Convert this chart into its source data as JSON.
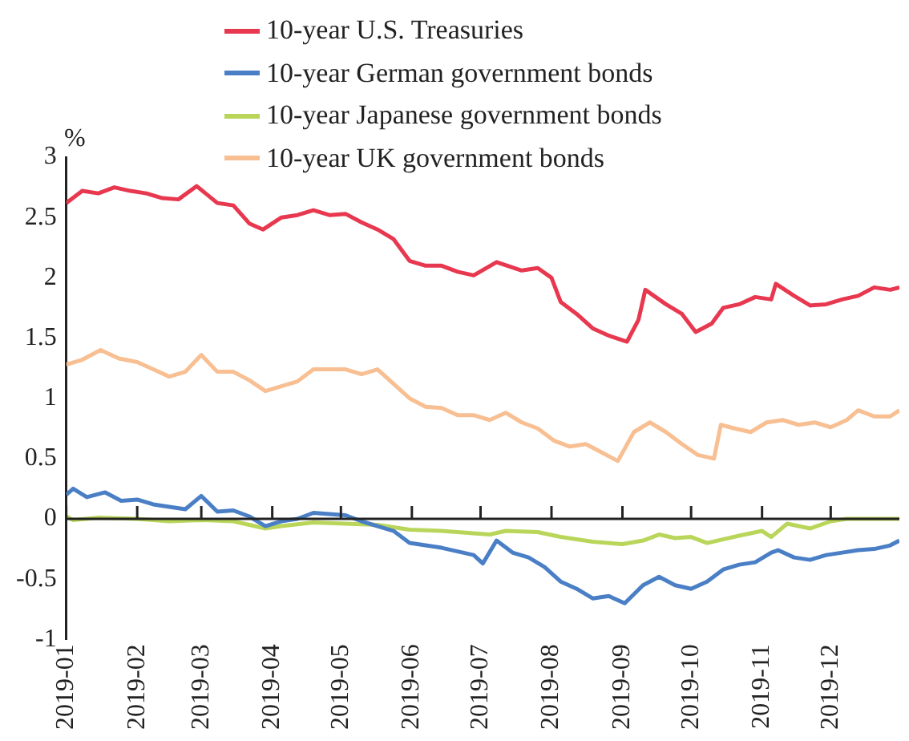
{
  "chart_data": {
    "type": "line",
    "ylabel": "%",
    "legend": "top",
    "grid": false,
    "line_style": "solid",
    "marker": "none",
    "xlim": [
      "2019-01-01",
      "2019-12-31"
    ],
    "xticks": [
      "2019-01",
      "2019-02",
      "2019-03",
      "2019-04",
      "2019-05",
      "2019-06",
      "2019-07",
      "2019-08",
      "2019-09",
      "2019-10",
      "2019-11",
      "2019-12"
    ],
    "ylim": [
      -1,
      3
    ],
    "yticks": [
      -1,
      -0.5,
      0,
      0.5,
      1,
      1.5,
      2,
      2.5,
      3
    ],
    "ref_lines": [
      {
        "axis": "y",
        "value": 0,
        "color": "#222222"
      }
    ],
    "series": [
      {
        "name": "10-year U.S. Treasuries",
        "color": "#e8384f",
        "x": [
          "2019-01-01",
          "2019-01-08",
          "2019-01-15",
          "2019-01-22",
          "2019-01-29",
          "2019-02-05",
          "2019-02-12",
          "2019-02-19",
          "2019-02-27",
          "2019-03-08",
          "2019-03-15",
          "2019-03-22",
          "2019-03-28",
          "2019-04-05",
          "2019-04-12",
          "2019-04-19",
          "2019-04-26",
          "2019-05-03",
          "2019-05-10",
          "2019-05-17",
          "2019-05-24",
          "2019-05-31",
          "2019-06-07",
          "2019-06-14",
          "2019-06-21",
          "2019-06-28",
          "2019-07-08",
          "2019-07-19",
          "2019-07-26",
          "2019-08-01",
          "2019-08-05",
          "2019-08-12",
          "2019-08-19",
          "2019-08-26",
          "2019-09-03",
          "2019-09-08",
          "2019-09-11",
          "2019-09-20",
          "2019-09-27",
          "2019-10-03",
          "2019-10-10",
          "2019-10-15",
          "2019-10-22",
          "2019-10-29",
          "2019-11-05",
          "2019-11-07",
          "2019-11-15",
          "2019-11-22",
          "2019-11-29",
          "2019-12-06",
          "2019-12-13",
          "2019-12-20",
          "2019-12-27",
          "2019-12-31"
        ],
        "values": [
          2.62,
          2.72,
          2.7,
          2.75,
          2.72,
          2.7,
          2.66,
          2.65,
          2.76,
          2.62,
          2.6,
          2.45,
          2.4,
          2.5,
          2.52,
          2.56,
          2.52,
          2.53,
          2.46,
          2.4,
          2.32,
          2.14,
          2.1,
          2.1,
          2.05,
          2.02,
          2.13,
          2.06,
          2.08,
          2.0,
          1.8,
          1.7,
          1.58,
          1.52,
          1.47,
          1.65,
          1.9,
          1.78,
          1.7,
          1.55,
          1.62,
          1.75,
          1.78,
          1.84,
          1.82,
          1.95,
          1.85,
          1.77,
          1.78,
          1.82,
          1.85,
          1.92,
          1.9,
          1.92
        ]
      },
      {
        "name": "10-year German government bonds",
        "color": "#4a7fc6",
        "x": [
          "2019-01-01",
          "2019-01-04",
          "2019-01-10",
          "2019-01-18",
          "2019-01-25",
          "2019-02-01",
          "2019-02-08",
          "2019-02-15",
          "2019-02-22",
          "2019-03-01",
          "2019-03-08",
          "2019-03-15",
          "2019-03-22",
          "2019-03-29",
          "2019-04-05",
          "2019-04-12",
          "2019-04-19",
          "2019-04-26",
          "2019-05-03",
          "2019-05-10",
          "2019-05-17",
          "2019-05-24",
          "2019-05-31",
          "2019-06-07",
          "2019-06-14",
          "2019-06-21",
          "2019-06-28",
          "2019-07-02",
          "2019-07-08",
          "2019-07-15",
          "2019-07-22",
          "2019-07-29",
          "2019-08-05",
          "2019-08-12",
          "2019-08-19",
          "2019-08-26",
          "2019-09-02",
          "2019-09-10",
          "2019-09-17",
          "2019-09-24",
          "2019-10-01",
          "2019-10-08",
          "2019-10-15",
          "2019-10-22",
          "2019-10-29",
          "2019-11-05",
          "2019-11-08",
          "2019-11-15",
          "2019-11-22",
          "2019-11-29",
          "2019-12-06",
          "2019-12-13",
          "2019-12-20",
          "2019-12-27",
          "2019-12-31"
        ],
        "values": [
          0.2,
          0.25,
          0.18,
          0.22,
          0.15,
          0.16,
          0.12,
          0.1,
          0.08,
          0.19,
          0.06,
          0.07,
          0.02,
          -0.06,
          -0.02,
          0.0,
          0.05,
          0.04,
          0.03,
          -0.02,
          -0.06,
          -0.1,
          -0.2,
          -0.22,
          -0.24,
          -0.27,
          -0.3,
          -0.37,
          -0.18,
          -0.28,
          -0.32,
          -0.4,
          -0.52,
          -0.58,
          -0.66,
          -0.64,
          -0.7,
          -0.55,
          -0.48,
          -0.55,
          -0.58,
          -0.52,
          -0.42,
          -0.38,
          -0.36,
          -0.28,
          -0.26,
          -0.32,
          -0.34,
          -0.3,
          -0.28,
          -0.26,
          -0.25,
          -0.22,
          -0.18
        ]
      },
      {
        "name": "10-year Japanese government bonds",
        "color": "#b9d65a",
        "x": [
          "2019-01-01",
          "2019-01-04",
          "2019-01-15",
          "2019-02-01",
          "2019-02-15",
          "2019-03-01",
          "2019-03-15",
          "2019-03-29",
          "2019-04-05",
          "2019-04-19",
          "2019-05-03",
          "2019-05-17",
          "2019-05-31",
          "2019-06-14",
          "2019-06-28",
          "2019-07-05",
          "2019-07-12",
          "2019-07-26",
          "2019-08-05",
          "2019-08-19",
          "2019-09-01",
          "2019-09-10",
          "2019-09-17",
          "2019-09-24",
          "2019-10-01",
          "2019-10-08",
          "2019-10-22",
          "2019-11-01",
          "2019-11-05",
          "2019-11-12",
          "2019-11-22",
          "2019-12-01",
          "2019-12-08",
          "2019-12-31"
        ],
        "values": [
          0.02,
          -0.01,
          0.01,
          0.0,
          -0.02,
          -0.01,
          -0.02,
          -0.08,
          -0.06,
          -0.03,
          -0.04,
          -0.05,
          -0.09,
          -0.1,
          -0.12,
          -0.13,
          -0.1,
          -0.11,
          -0.15,
          -0.19,
          -0.21,
          -0.18,
          -0.13,
          -0.16,
          -0.15,
          -0.2,
          -0.14,
          -0.1,
          -0.15,
          -0.04,
          -0.08,
          -0.02,
          0.0,
          0.0
        ]
      },
      {
        "name": "10-year UK government bonds",
        "color": "#f8bf92",
        "x": [
          "2019-01-01",
          "2019-01-08",
          "2019-01-16",
          "2019-01-24",
          "2019-02-01",
          "2019-02-08",
          "2019-02-15",
          "2019-02-22",
          "2019-03-01",
          "2019-03-08",
          "2019-03-15",
          "2019-03-22",
          "2019-03-29",
          "2019-04-05",
          "2019-04-12",
          "2019-04-19",
          "2019-04-26",
          "2019-05-03",
          "2019-05-10",
          "2019-05-17",
          "2019-05-24",
          "2019-05-31",
          "2019-06-07",
          "2019-06-14",
          "2019-06-21",
          "2019-06-28",
          "2019-07-05",
          "2019-07-12",
          "2019-07-19",
          "2019-07-26",
          "2019-08-02",
          "2019-08-09",
          "2019-08-16",
          "2019-08-23",
          "2019-08-30",
          "2019-09-06",
          "2019-09-13",
          "2019-09-20",
          "2019-09-27",
          "2019-10-04",
          "2019-10-11",
          "2019-10-14",
          "2019-10-20",
          "2019-10-27",
          "2019-11-03",
          "2019-11-10",
          "2019-11-17",
          "2019-11-24",
          "2019-12-01",
          "2019-12-08",
          "2019-12-13",
          "2019-12-20",
          "2019-12-27",
          "2019-12-31"
        ],
        "values": [
          1.28,
          1.32,
          1.4,
          1.33,
          1.3,
          1.24,
          1.18,
          1.22,
          1.36,
          1.22,
          1.22,
          1.15,
          1.06,
          1.1,
          1.14,
          1.24,
          1.24,
          1.24,
          1.2,
          1.24,
          1.12,
          1.0,
          0.93,
          0.92,
          0.86,
          0.86,
          0.82,
          0.88,
          0.8,
          0.75,
          0.65,
          0.6,
          0.62,
          0.55,
          0.48,
          0.72,
          0.8,
          0.72,
          0.62,
          0.53,
          0.5,
          0.78,
          0.75,
          0.72,
          0.8,
          0.82,
          0.78,
          0.8,
          0.76,
          0.82,
          0.9,
          0.85,
          0.85,
          0.9
        ]
      }
    ]
  }
}
